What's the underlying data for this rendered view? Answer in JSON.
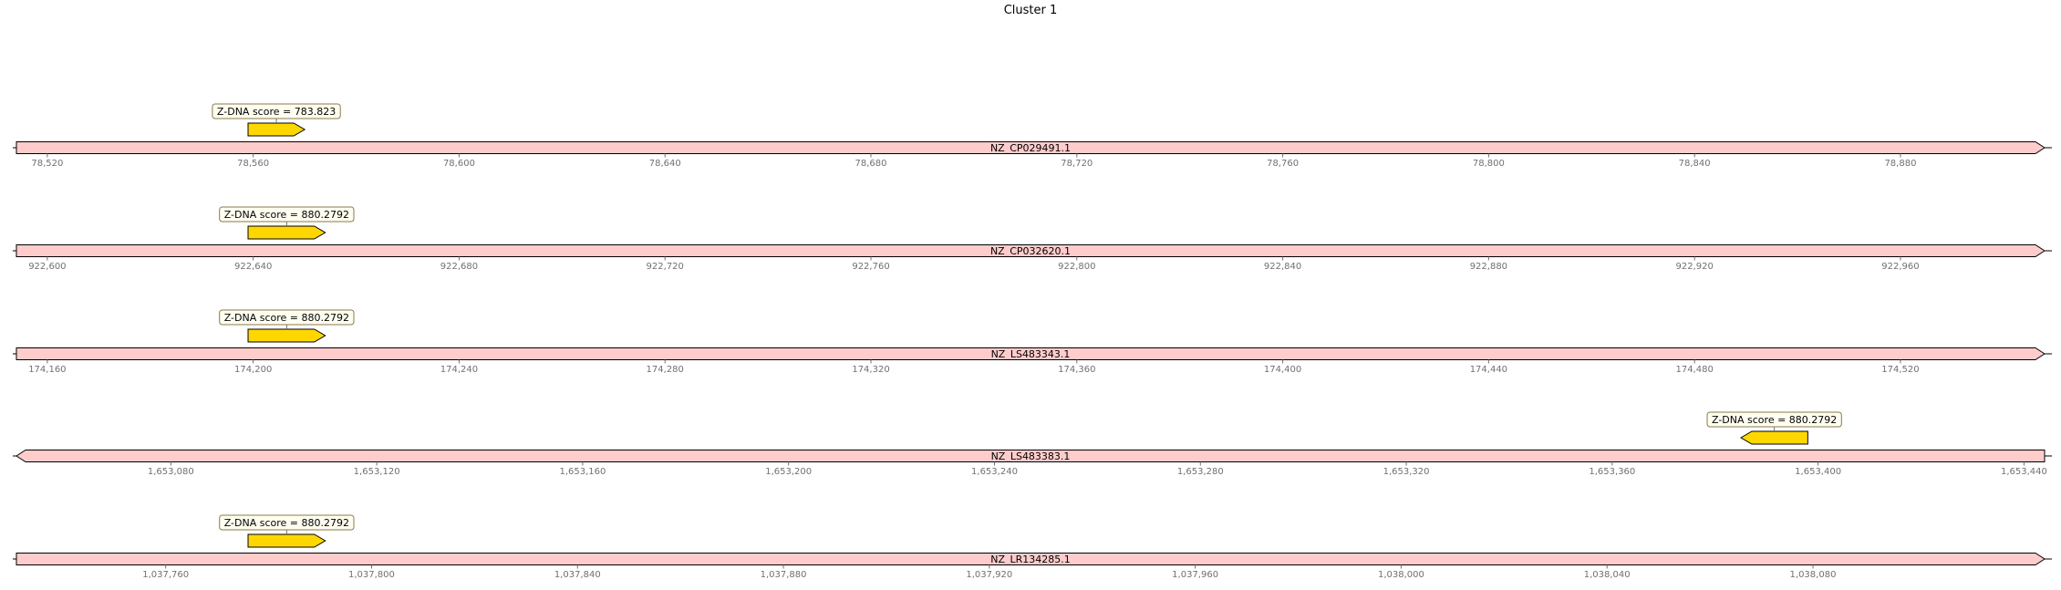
{
  "title": "Cluster 1",
  "colors": {
    "sequence_fill": "#ffcccc",
    "feature_fill": "#ffd700",
    "outline": "#000000",
    "annotation_box_fill": "#fffef0",
    "annotation_box_stroke": "#8a7a4a",
    "tick_color": "#707070"
  },
  "tracks": [
    {
      "name": "NZ_CP029491.1",
      "range": [
        78514,
        78908
      ],
      "direction": "forward",
      "ticks": [
        78520,
        78560,
        78600,
        78640,
        78680,
        78720,
        78760,
        78800,
        78840,
        78880
      ],
      "tick_labels": [
        "78,520",
        "78,560",
        "78,600",
        "78,640",
        "78,680",
        "78,720",
        "78,760",
        "78,800",
        "78,840",
        "78,880"
      ],
      "features": [
        {
          "start": 78559,
          "end": 78570,
          "strand": 1,
          "label": "Z-DNA score = 783.823"
        }
      ]
    },
    {
      "name": "NZ_CP032620.1",
      "range": [
        922594,
        922988
      ],
      "direction": "forward",
      "ticks": [
        922600,
        922640,
        922680,
        922720,
        922760,
        922800,
        922840,
        922880,
        922920,
        922960
      ],
      "tick_labels": [
        "922,600",
        "922,640",
        "922,680",
        "922,720",
        "922,760",
        "922,800",
        "922,840",
        "922,880",
        "922,920",
        "922,960"
      ],
      "features": [
        {
          "start": 922639,
          "end": 922654,
          "strand": 1,
          "label": "Z-DNA score = 880.2792"
        }
      ]
    },
    {
      "name": "NZ_LS483343.1",
      "range": [
        174154,
        174548
      ],
      "direction": "forward",
      "ticks": [
        174160,
        174200,
        174240,
        174280,
        174320,
        174360,
        174400,
        174440,
        174480,
        174520
      ],
      "tick_labels": [
        "174,160",
        "174,200",
        "174,240",
        "174,280",
        "174,320",
        "174,360",
        "174,400",
        "174,440",
        "174,480",
        "174,520"
      ],
      "features": [
        {
          "start": 174199,
          "end": 174214,
          "strand": 1,
          "label": "Z-DNA score = 880.2792"
        }
      ]
    },
    {
      "name": "NZ_LS483383.1",
      "range": [
        1653050,
        1653444
      ],
      "direction": "reverse",
      "ticks": [
        1653080,
        1653120,
        1653160,
        1653200,
        1653240,
        1653280,
        1653320,
        1653360,
        1653400,
        1653440
      ],
      "tick_labels": [
        "1,653,080",
        "1,653,120",
        "1,653,160",
        "1,653,200",
        "1,653,240",
        "1,653,280",
        "1,653,320",
        "1,653,360",
        "1,653,400",
        "1,653,440"
      ],
      "features": [
        {
          "start": 1653385,
          "end": 1653398,
          "strand": -1,
          "label": "Z-DNA score = 880.2792"
        }
      ]
    },
    {
      "name": "NZ_LR134285.1",
      "range": [
        1037731,
        1038125
      ],
      "direction": "forward",
      "ticks": [
        1037760,
        1037800,
        1037840,
        1037880,
        1037920,
        1037960,
        1038000,
        1038040,
        1038080
      ],
      "tick_labels": [
        "1,037,760",
        "1,037,800",
        "1,037,840",
        "1,037,880",
        "1,037,920",
        "1,037,960",
        "1,038,000",
        "1,038,040",
        "1,038,080"
      ],
      "features": [
        {
          "start": 1037776,
          "end": 1037791,
          "strand": 1,
          "label": "Z-DNA score = 880.2792"
        }
      ]
    }
  ]
}
